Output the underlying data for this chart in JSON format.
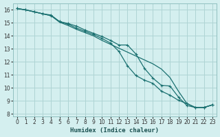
{
  "xlabel": "Humidex (Indice chaleur)",
  "bg_color": "#d4efef",
  "grid_color": "#aed4d4",
  "line_color": "#1a7070",
  "xlim": [
    -0.5,
    23.5
  ],
  "ylim": [
    7.8,
    16.5
  ],
  "xticks": [
    0,
    1,
    2,
    3,
    4,
    5,
    6,
    7,
    8,
    9,
    10,
    11,
    12,
    13,
    14,
    15,
    16,
    17,
    18,
    19,
    20,
    21,
    22,
    23
  ],
  "yticks": [
    8,
    9,
    10,
    11,
    12,
    13,
    14,
    15,
    16
  ],
  "curve1_x": [
    0,
    1,
    2,
    3,
    4,
    5,
    6,
    7,
    8,
    9,
    10,
    11,
    12,
    13,
    14,
    15,
    16,
    17,
    18,
    19,
    20,
    21,
    22,
    23
  ],
  "curve1_y": [
    16.1,
    16.0,
    15.85,
    15.7,
    15.6,
    15.1,
    14.95,
    14.75,
    14.45,
    14.2,
    13.95,
    13.65,
    13.3,
    13.3,
    12.6,
    11.5,
    10.75,
    10.2,
    10.15,
    9.3,
    8.65,
    8.5,
    8.5,
    8.7
  ],
  "curve2_x": [
    0,
    1,
    2,
    3,
    4,
    5,
    6,
    7,
    8,
    9,
    10,
    11,
    12,
    13,
    14,
    15,
    16,
    17,
    18,
    19,
    20,
    21,
    22,
    23
  ],
  "curve2_y": [
    16.1,
    16.0,
    15.85,
    15.7,
    15.55,
    15.05,
    14.8,
    14.5,
    14.25,
    14.0,
    13.65,
    13.35,
    13.05,
    12.75,
    12.45,
    12.15,
    11.85,
    11.45,
    10.8,
    9.75,
    8.8,
    8.5,
    8.5,
    8.7
  ],
  "curve3_x": [
    0,
    1,
    2,
    3,
    4,
    5,
    6,
    7,
    8,
    9,
    10,
    11,
    12,
    13,
    14,
    15,
    16,
    17,
    18,
    19,
    20,
    21,
    22,
    23
  ],
  "curve3_y": [
    16.1,
    16.0,
    15.85,
    15.7,
    15.55,
    15.1,
    14.9,
    14.6,
    14.35,
    14.1,
    13.8,
    13.45,
    12.8,
    11.7,
    10.95,
    10.6,
    10.35,
    9.75,
    9.45,
    9.05,
    8.8,
    8.5,
    8.5,
    8.7
  ]
}
